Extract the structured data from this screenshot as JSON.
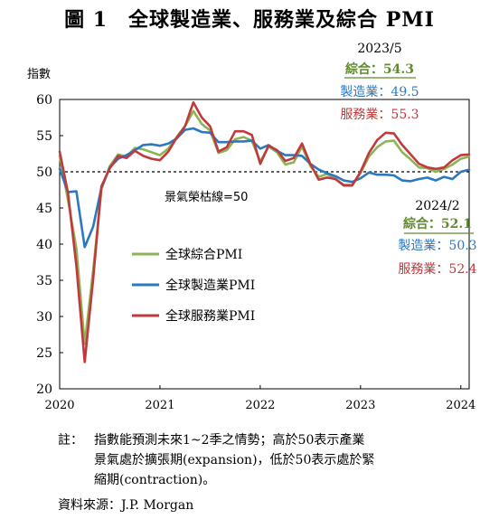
{
  "title": "圖 1　全球製造業、服務業及綜合 PMI",
  "chart_data": {
    "type": "line",
    "ylabel": "指數",
    "ylim": [
      20,
      60
    ],
    "yticks": [
      "20",
      "25",
      "30",
      "35",
      "40",
      "45",
      "50",
      "55",
      "60"
    ],
    "xticks": [
      "2020",
      "2021",
      "2022",
      "2023",
      "2024"
    ],
    "x": [
      "2020-01",
      "2020-02",
      "2020-03",
      "2020-04",
      "2020-05",
      "2020-06",
      "2020-07",
      "2020-08",
      "2020-09",
      "2020-10",
      "2020-11",
      "2020-12",
      "2021-01",
      "2021-02",
      "2021-03",
      "2021-04",
      "2021-05",
      "2021-06",
      "2021-07",
      "2021-08",
      "2021-09",
      "2021-10",
      "2021-11",
      "2021-12",
      "2022-01",
      "2022-02",
      "2022-03",
      "2022-04",
      "2022-05",
      "2022-06",
      "2022-07",
      "2022-08",
      "2022-09",
      "2022-10",
      "2022-11",
      "2022-12",
      "2023-01",
      "2023-02",
      "2023-03",
      "2023-04",
      "2023-05",
      "2023-06",
      "2023-07",
      "2023-08",
      "2023-09",
      "2023-10",
      "2023-11",
      "2023-12",
      "2024-01",
      "2024-02"
    ],
    "series": [
      {
        "name": "全球綜合PMI",
        "color": "#8db356",
        "values": [
          52.2,
          46.1,
          39.4,
          26.2,
          36.3,
          47.6,
          50.8,
          52.4,
          52.1,
          53.3,
          53.1,
          52.7,
          52.3,
          53.2,
          54.8,
          56.3,
          58.4,
          56.6,
          55.7,
          52.6,
          53.0,
          54.5,
          54.8,
          54.3,
          51.4,
          53.5,
          52.7,
          51.0,
          51.3,
          53.5,
          50.8,
          49.3,
          49.7,
          49.0,
          48.2,
          48.2,
          49.8,
          52.1,
          53.4,
          54.2,
          54.3,
          52.7,
          51.7,
          50.6,
          50.5,
          50.0,
          50.4,
          51.0,
          51.8,
          52.1
        ]
      },
      {
        "name": "全球製造業PMI",
        "color": "#2a78bf",
        "values": [
          50.4,
          47.2,
          47.3,
          39.6,
          42.4,
          47.8,
          50.6,
          51.8,
          52.3,
          53.0,
          53.7,
          53.8,
          53.6,
          53.9,
          54.6,
          55.8,
          56.0,
          55.5,
          55.4,
          54.1,
          54.1,
          54.2,
          54.2,
          54.3,
          53.2,
          53.7,
          52.9,
          52.3,
          52.3,
          52.2,
          51.1,
          50.3,
          49.8,
          49.4,
          48.8,
          48.6,
          49.1,
          49.9,
          49.6,
          49.6,
          49.5,
          48.8,
          48.7,
          49.0,
          49.2,
          48.8,
          49.3,
          49.0,
          50.0,
          50.3
        ]
      },
      {
        "name": "全球服務業PMI",
        "color": "#c0393b",
        "values": [
          52.8,
          47.1,
          37.0,
          23.7,
          35.1,
          48.0,
          50.5,
          52.2,
          51.9,
          52.9,
          52.2,
          51.8,
          51.6,
          52.8,
          54.7,
          56.3,
          59.6,
          57.5,
          56.3,
          52.8,
          53.4,
          55.6,
          55.6,
          55.1,
          51.1,
          53.6,
          53.0,
          51.5,
          51.9,
          53.9,
          51.1,
          48.9,
          49.2,
          49.0,
          48.1,
          48.1,
          50.0,
          52.6,
          54.4,
          55.4,
          55.3,
          53.7,
          52.4,
          51.1,
          50.6,
          50.4,
          50.6,
          51.6,
          52.3,
          52.4
        ]
      }
    ],
    "reference_line": {
      "value": 50,
      "label": "景氣榮枯線=50"
    },
    "annotations": {
      "date1": "2023/5",
      "date1_items": [
        {
          "label": "綜合：54.3",
          "color": "#5f8a2e"
        },
        {
          "label": "製造業：49.5",
          "color": "#2a78bf"
        },
        {
          "label": "服務業：55.3",
          "color": "#c0393b"
        }
      ],
      "date2": "2024/2",
      "date2_items": [
        {
          "label": "綜合：52.1",
          "color": "#5f8a2e"
        },
        {
          "label": "製造業：50.3",
          "color": "#2a78bf"
        },
        {
          "label": "服務業：52.4",
          "color": "#c0393b"
        }
      ]
    },
    "legend_position": "left-center"
  },
  "note_label": "註：",
  "note_lines": [
    "指數能預測未來1~2季之情勢；高於50表示產業",
    "景氣處於擴張期(expansion)，低於50表示處於緊",
    "縮期(contraction)。"
  ],
  "source": "資料來源：J.P. Morgan"
}
